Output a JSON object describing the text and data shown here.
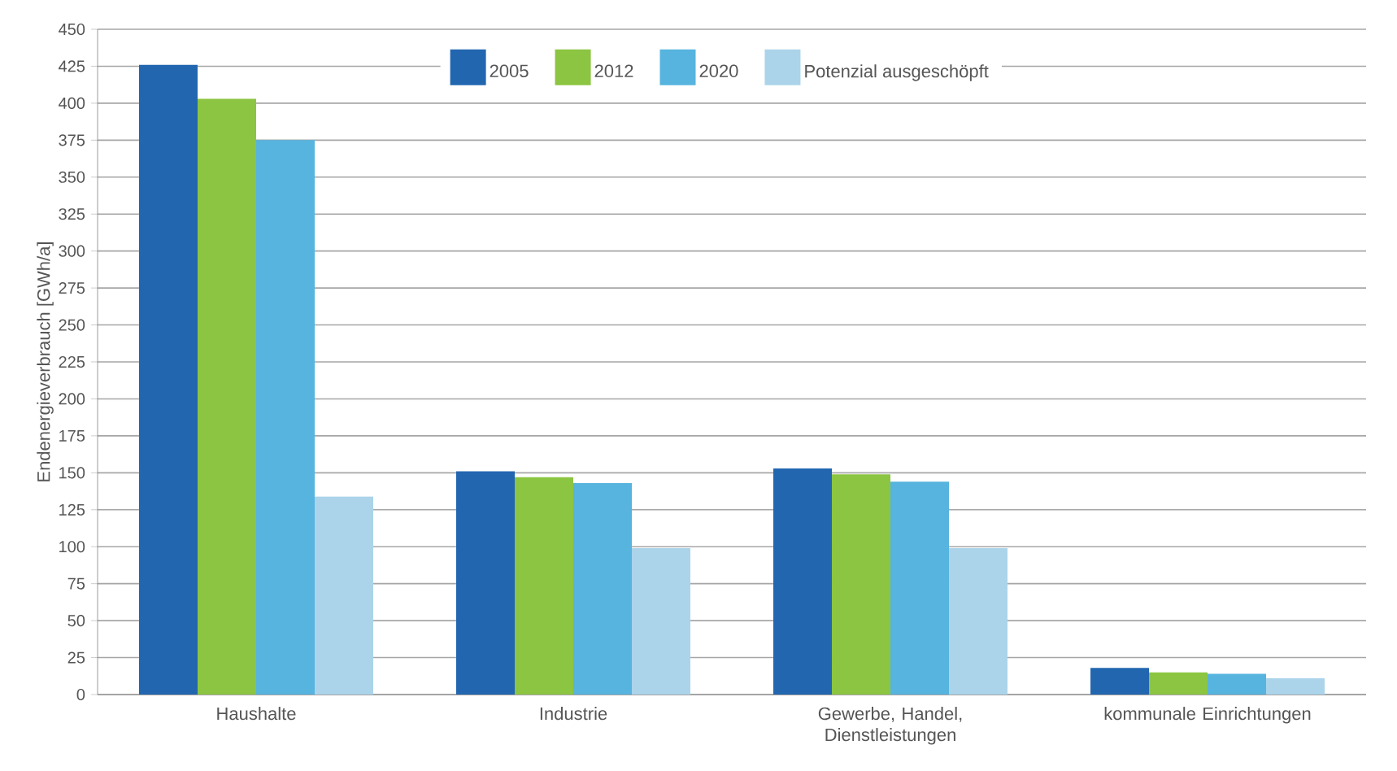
{
  "chart_data": {
    "type": "bar",
    "ylabel": "Endenergieverbrauch  [GWh/a]",
    "categories": [
      "Haushalte",
      "Industrie",
      "Gewerbe, Handel, Dienstleistungen",
      "kommunale Einrichtungen"
    ],
    "series": [
      {
        "name": "2005",
        "color": "#2266b0",
        "values": [
          426,
          151,
          153,
          18
        ]
      },
      {
        "name": "2012",
        "color": "#8bc541",
        "values": [
          403,
          147,
          149,
          15
        ]
      },
      {
        "name": "2020",
        "color": "#56b4de",
        "values": [
          375,
          143,
          144,
          14
        ]
      },
      {
        "name": "Potenzial ausgeschöpft",
        "color": "#abd4ea",
        "values": [
          134,
          99,
          99,
          11
        ]
      }
    ],
    "ylim": [
      0,
      450
    ],
    "yticks": [
      0,
      25,
      50,
      75,
      100,
      125,
      150,
      175,
      200,
      225,
      250,
      275,
      300,
      325,
      350,
      375,
      400,
      425,
      450
    ],
    "grid": "y",
    "legend": "top"
  }
}
